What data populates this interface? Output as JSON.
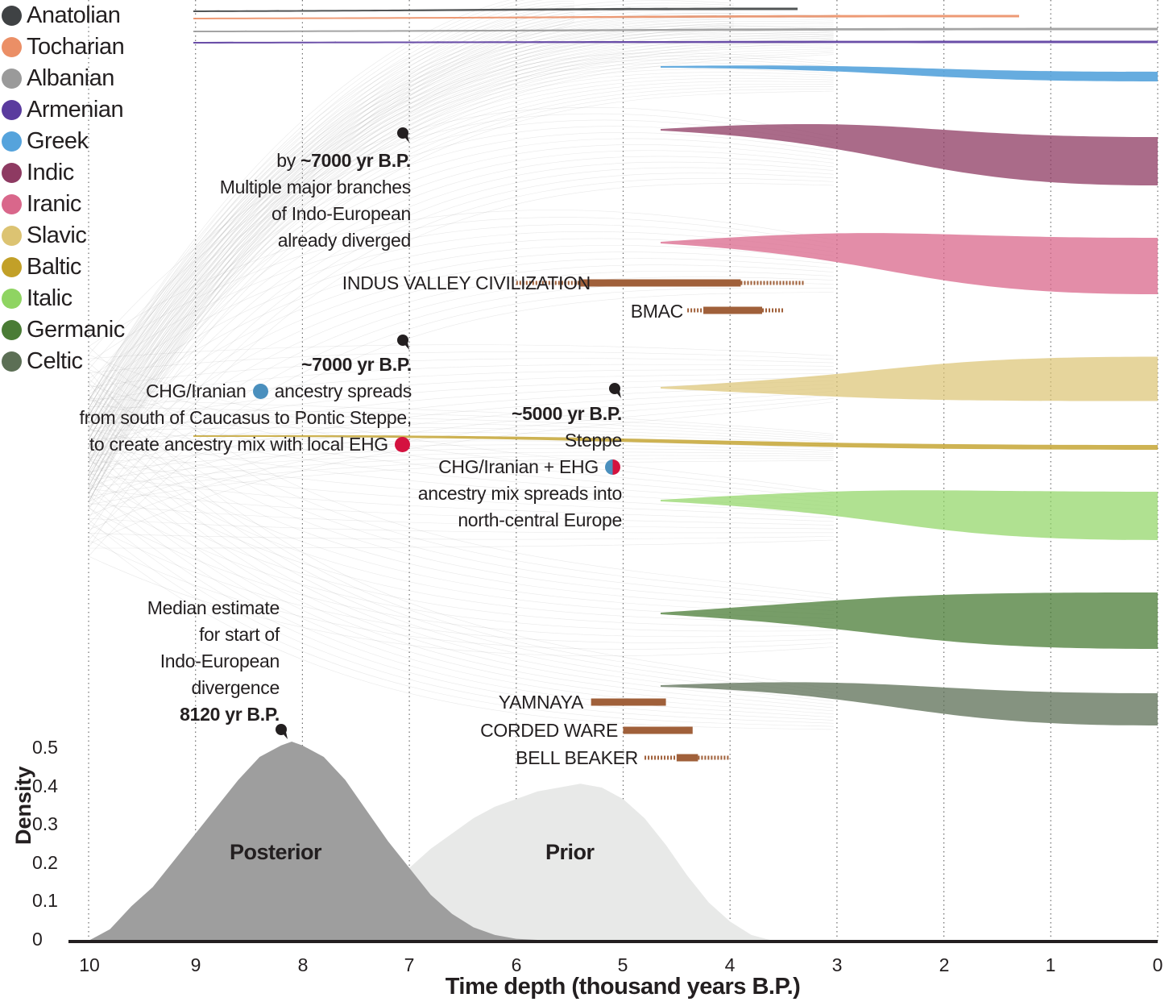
{
  "legend": [
    {
      "name": "Anatolian",
      "color": "#3f4244"
    },
    {
      "name": "Tocharian",
      "color": "#eb8f66"
    },
    {
      "name": "Albanian",
      "color": "#9a9a9a"
    },
    {
      "name": "Armenian",
      "color": "#5a3b9e"
    },
    {
      "name": "Greek",
      "color": "#55a3dc"
    },
    {
      "name": "Indic",
      "color": "#8e3a62"
    },
    {
      "name": "Iranic",
      "color": "#d9678b"
    },
    {
      "name": "Slavic",
      "color": "#dcc372"
    },
    {
      "name": "Baltic",
      "color": "#c2a028"
    },
    {
      "name": "Italic",
      "color": "#8fd462"
    },
    {
      "name": "Germanic",
      "color": "#4a7c35"
    },
    {
      "name": "Celtic",
      "color": "#5c6f55"
    }
  ],
  "annotations": {
    "a1_bold": "~7000 yr B.P.",
    "a1_pre": "by",
    "a1_l2": "Multiple major branches",
    "a1_l3": "of Indo-European",
    "a1_l4": "already diverged",
    "a2_bold": "~7000 yr B.P.",
    "a2_l2a": "CHG/Iranian",
    "a2_l2b": "ancestry spreads",
    "a2_l3": "from south of Caucasus to Pontic Steppe,",
    "a2_l4": "to create ancestry mix with local EHG",
    "a3_bold": "~5000 yr B.P.",
    "a3_l2": "Steppe",
    "a3_l3": "CHG/Iranian + EHG",
    "a3_l4": "ancestry mix spreads into",
    "a3_l5": "north-central Europe",
    "median_l1": "Median estimate",
    "median_l2": "for start of",
    "median_l3": "Indo-European",
    "median_l4": "divergence",
    "median_bold": "8120 yr B.P."
  },
  "pie_colors": {
    "chg_iranian": "#4a8fbd",
    "ehg": "#d4123f"
  },
  "cultures": [
    {
      "name": "INDUS VALLEY CIVILIZATION",
      "dotted_start": 6.0,
      "solid_start": 5.4,
      "solid_end": 3.9,
      "dotted_end": 3.3
    },
    {
      "name": "BMAC",
      "dotted_start": 4.4,
      "solid_start": 4.25,
      "solid_end": 3.7,
      "dotted_end": 3.5
    },
    {
      "name": "YAMNAYA",
      "solid_start": 5.3,
      "solid_end": 4.6
    },
    {
      "name": "CORDED WARE",
      "solid_start": 5.0,
      "solid_end": 4.35
    },
    {
      "name": "BELL BEAKER",
      "dotted_start": 4.8,
      "solid_start": 4.5,
      "solid_end": 4.3,
      "dotted_end": 4.0
    }
  ],
  "culture_color": "#a0603a",
  "chart_data": {
    "type": "area",
    "xlabel": "Time depth (thousand years B.P.)",
    "ylabel": "Density",
    "x_ticks": [
      "10",
      "9",
      "8",
      "7",
      "6",
      "5",
      "4",
      "3",
      "2",
      "1",
      "0"
    ],
    "y_ticks": [
      "0",
      "0.1",
      "0.2",
      "0.3",
      "0.4",
      "0.5"
    ],
    "xlim": [
      10,
      0
    ],
    "ylim": [
      0,
      0.5
    ],
    "series": [
      {
        "name": "Posterior",
        "color": "#9e9e9e",
        "x": [
          10.0,
          9.8,
          9.6,
          9.4,
          9.2,
          9.0,
          8.8,
          8.6,
          8.4,
          8.2,
          8.1,
          8.0,
          7.8,
          7.6,
          7.4,
          7.2,
          7.0,
          6.8,
          6.6,
          6.4,
          6.2,
          6.0,
          5.8,
          5.5
        ],
        "y": [
          0.0,
          0.03,
          0.09,
          0.14,
          0.21,
          0.28,
          0.35,
          0.42,
          0.48,
          0.51,
          0.52,
          0.51,
          0.48,
          0.42,
          0.34,
          0.26,
          0.19,
          0.12,
          0.07,
          0.035,
          0.015,
          0.005,
          0.002,
          0.0
        ]
      },
      {
        "name": "Prior",
        "color": "#e8e9e8",
        "x": [
          7.0,
          6.8,
          6.6,
          6.4,
          6.2,
          6.0,
          5.8,
          5.6,
          5.4,
          5.2,
          5.0,
          4.8,
          4.6,
          4.4,
          4.2,
          4.0,
          3.8,
          3.6
        ],
        "y": [
          0.19,
          0.24,
          0.28,
          0.32,
          0.35,
          0.37,
          0.39,
          0.4,
          0.41,
          0.4,
          0.37,
          0.32,
          0.25,
          0.17,
          0.1,
          0.05,
          0.015,
          0.0
        ]
      }
    ],
    "grid": "vertical dotted at each thousand years"
  }
}
